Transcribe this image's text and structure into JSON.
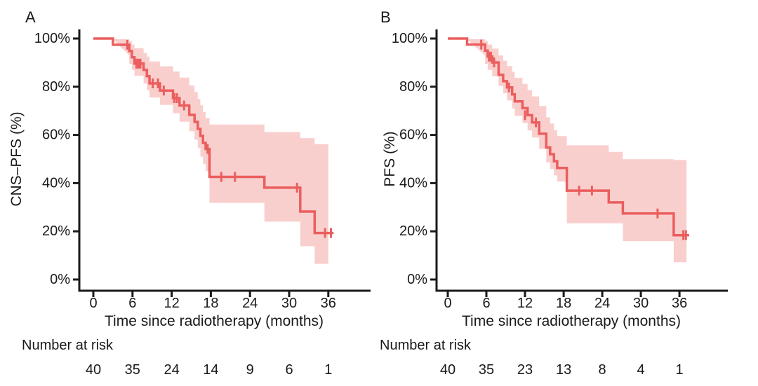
{
  "figure": {
    "background": "#ffffff",
    "colors": {
      "curve": "#eb5e5e",
      "band": "#f9cfce",
      "axis": "#1a1a1a",
      "text": "#1a1a1a"
    }
  },
  "chart_data": [
    {
      "type": "line",
      "subtype": "kaplan-meier-step",
      "panel_label": "A",
      "ylabel": "CNS–PFS (%)",
      "xlabel": "Time since radiotherapy (months)",
      "xlim": [
        0,
        42
      ],
      "ylim": [
        0,
        100
      ],
      "grid": false,
      "x_tick_values": [
        0,
        6,
        12,
        18,
        24,
        30,
        36
      ],
      "x_tick_labels": [
        "0",
        "6",
        "12",
        "18",
        "24",
        "30",
        "36"
      ],
      "y_tick_values": [
        0,
        20,
        40,
        60,
        80,
        100
      ],
      "y_tick_labels": [
        "0%",
        "20%",
        "40%",
        "60%",
        "80%",
        "100%"
      ],
      "risk_label": "Number at risk",
      "risk_counts": [
        "40",
        "35",
        "24",
        "14",
        "9",
        "6",
        "1"
      ],
      "curve_end_t": 36.8,
      "band_end_t": 36.0,
      "survival_steps": [
        [
          0,
          100
        ],
        [
          3,
          97.4
        ],
        [
          5.5,
          94.8
        ],
        [
          5.9,
          92.2
        ],
        [
          6.3,
          89.6
        ],
        [
          7.7,
          87.0
        ],
        [
          8.2,
          84.4
        ],
        [
          8.6,
          81.4
        ],
        [
          10.2,
          78.4
        ],
        [
          12.2,
          75.3
        ],
        [
          13.2,
          72.2
        ],
        [
          14.7,
          68.3
        ],
        [
          15.5,
          65.4
        ],
        [
          16.0,
          62.5
        ],
        [
          16.4,
          59.6
        ],
        [
          16.8,
          56.7
        ],
        [
          17.2,
          54.2
        ],
        [
          17.8,
          42.6
        ],
        [
          26.2,
          38.1
        ],
        [
          31.7,
          28.2
        ],
        [
          33.9,
          19.3
        ]
      ],
      "censor_marks": [
        [
          5.2,
          97.4
        ],
        [
          6.6,
          89.6
        ],
        [
          6.9,
          89.6
        ],
        [
          7.2,
          89.6
        ],
        [
          9.1,
          81.4
        ],
        [
          9.9,
          81.4
        ],
        [
          10.8,
          78.4
        ],
        [
          12.4,
          75.3
        ],
        [
          12.8,
          75.3
        ],
        [
          13.9,
          72.2
        ],
        [
          17.5,
          54.2
        ],
        [
          19.6,
          42.6
        ],
        [
          21.7,
          42.6
        ],
        [
          31.2,
          38.1
        ],
        [
          35.5,
          19.3
        ],
        [
          36.4,
          19.3
        ]
      ],
      "ci_upper_steps": [
        [
          3,
          99.7
        ],
        [
          5.5,
          99.0
        ],
        [
          5.9,
          97.5
        ],
        [
          6.3,
          96.0
        ],
        [
          7.7,
          94.0
        ],
        [
          8.2,
          92.5
        ],
        [
          8.6,
          90.5
        ],
        [
          10.2,
          88.5
        ],
        [
          12.2,
          86.3
        ],
        [
          13.2,
          83.8
        ],
        [
          14.7,
          80.5
        ],
        [
          15.5,
          77.8
        ],
        [
          16.0,
          75.0
        ],
        [
          16.4,
          72.3
        ],
        [
          16.8,
          69.5
        ],
        [
          17.2,
          67.0
        ],
        [
          17.8,
          64.3
        ],
        [
          26.2,
          61.2
        ],
        [
          31.7,
          58.7
        ],
        [
          33.9,
          56.2
        ]
      ],
      "ci_lower_steps": [
        [
          3,
          93.0
        ],
        [
          5.5,
          89.5
        ],
        [
          5.9,
          87.0
        ],
        [
          6.3,
          84.5
        ],
        [
          7.7,
          81.3
        ],
        [
          8.2,
          78.5
        ],
        [
          8.6,
          75.5
        ],
        [
          10.2,
          72.5
        ],
        [
          12.2,
          69.0
        ],
        [
          13.2,
          65.5
        ],
        [
          14.7,
          61.5
        ],
        [
          15.5,
          58.0
        ],
        [
          16.0,
          54.5
        ],
        [
          16.4,
          51.0
        ],
        [
          16.8,
          48.0
        ],
        [
          17.2,
          45.0
        ],
        [
          17.8,
          31.8
        ],
        [
          26.2,
          24.0
        ],
        [
          31.7,
          13.8
        ],
        [
          33.9,
          6.5
        ]
      ]
    },
    {
      "type": "line",
      "subtype": "kaplan-meier-step",
      "panel_label": "B",
      "ylabel": "PFS (%)",
      "xlabel": "Time since radiotherapy (months)",
      "xlim": [
        0,
        42
      ],
      "ylim": [
        0,
        100
      ],
      "grid": false,
      "x_tick_values": [
        0,
        6,
        12,
        18,
        24,
        30,
        36
      ],
      "x_tick_labels": [
        "0",
        "6",
        "12",
        "18",
        "24",
        "30",
        "36"
      ],
      "y_tick_values": [
        0,
        20,
        40,
        60,
        80,
        100
      ],
      "y_tick_labels": [
        "0%",
        "20%",
        "40%",
        "60%",
        "80%",
        "100%"
      ],
      "risk_label": "Number at risk",
      "risk_counts": [
        "40",
        "35",
        "23",
        "13",
        "8",
        "4",
        "1"
      ],
      "curve_end_t": 37.5,
      "band_end_t": 37.1,
      "survival_steps": [
        [
          0,
          100
        ],
        [
          3,
          97.5
        ],
        [
          5.8,
          95.0
        ],
        [
          6.2,
          92.5
        ],
        [
          6.9,
          90.1
        ],
        [
          7.9,
          84.9
        ],
        [
          8.6,
          82.3
        ],
        [
          9.2,
          79.7
        ],
        [
          10.0,
          76.8
        ],
        [
          10.4,
          73.9
        ],
        [
          11.6,
          71.1
        ],
        [
          12.4,
          68.2
        ],
        [
          13.1,
          65.2
        ],
        [
          14.2,
          60.5
        ],
        [
          15.3,
          54.8
        ],
        [
          15.9,
          52.0
        ],
        [
          16.5,
          49.1
        ],
        [
          17.0,
          46.3
        ],
        [
          18.5,
          36.9
        ],
        [
          25.0,
          32.0
        ],
        [
          27.2,
          27.4
        ],
        [
          35.1,
          18.4
        ]
      ],
      "censor_marks": [
        [
          5.2,
          97.5
        ],
        [
          6.4,
          92.5
        ],
        [
          6.7,
          92.5
        ],
        [
          7.2,
          90.1
        ],
        [
          9.5,
          79.7
        ],
        [
          12.0,
          68.2
        ],
        [
          13.7,
          65.2
        ],
        [
          20.4,
          36.9
        ],
        [
          22.4,
          36.9
        ],
        [
          32.6,
          27.4
        ],
        [
          36.6,
          18.4
        ],
        [
          37.0,
          18.4
        ]
      ],
      "ci_upper_steps": [
        [
          3,
          99.7
        ],
        [
          5.8,
          99.0
        ],
        [
          6.2,
          97.5
        ],
        [
          6.9,
          95.8
        ],
        [
          7.9,
          93.0
        ],
        [
          8.6,
          90.8
        ],
        [
          9.2,
          88.6
        ],
        [
          10.0,
          86.2
        ],
        [
          10.4,
          83.7
        ],
        [
          11.6,
          81.2
        ],
        [
          12.4,
          78.6
        ],
        [
          13.1,
          76.0
        ],
        [
          14.2,
          72.0
        ],
        [
          15.3,
          67.3
        ],
        [
          15.9,
          64.7
        ],
        [
          16.5,
          62.0
        ],
        [
          17.0,
          59.5
        ],
        [
          18.5,
          55.7
        ],
        [
          25.0,
          53.0
        ],
        [
          27.2,
          49.9
        ],
        [
          35.1,
          49.6
        ]
      ],
      "ci_lower_steps": [
        [
          3,
          93.0
        ],
        [
          5.8,
          89.5
        ],
        [
          6.2,
          87.0
        ],
        [
          6.9,
          84.3
        ],
        [
          7.9,
          80.3
        ],
        [
          8.6,
          77.3
        ],
        [
          9.2,
          74.3
        ],
        [
          10.0,
          71.0
        ],
        [
          10.4,
          67.9
        ],
        [
          11.6,
          64.9
        ],
        [
          12.4,
          61.9
        ],
        [
          13.1,
          58.9
        ],
        [
          14.2,
          54.2
        ],
        [
          15.3,
          48.6
        ],
        [
          15.9,
          45.9
        ],
        [
          16.5,
          43.2
        ],
        [
          17.0,
          40.6
        ],
        [
          18.5,
          23.3
        ],
        [
          25.0,
          23.3
        ],
        [
          27.2,
          15.9
        ],
        [
          35.1,
          7.2
        ]
      ]
    }
  ]
}
